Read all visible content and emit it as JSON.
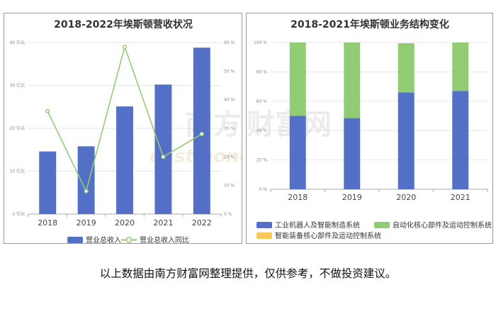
{
  "left_chart_title": "2018-2022年埃斯顿营收状况",
  "right_chart_title": "2018-2021年埃斯顿业务结构变化",
  "footer_text": "以上数据由南方财富网整理提供，仅供参考，不做投资建议。",
  "watermark": {
    "cn": "南方财富网",
    "en": "eastmoney.com"
  },
  "colors": {
    "blue": "#5470c6",
    "green": "#91cc75",
    "yellow": "#fac858"
  },
  "chart_data": [
    {
      "type": "bar",
      "title": "2018-2022年埃斯顿营收状况",
      "categories": [
        "2018",
        "2019",
        "2020",
        "2021",
        "2022"
      ],
      "series": [
        {
          "name": "营业总收入",
          "type": "bar",
          "axis": "left",
          "values": [
            14.6,
            15.8,
            25.1,
            30.2,
            38.8
          ]
        },
        {
          "name": "营业总收入同比",
          "type": "line",
          "axis": "right",
          "values": [
            36.0,
            8.0,
            58.5,
            20.0,
            28.0
          ]
        }
      ],
      "y_left": {
        "ticks": [
          "0 亿元",
          "10 亿元",
          "20 亿元",
          "30 亿元",
          "40 亿元"
        ],
        "ylim": [
          0,
          40
        ]
      },
      "y_right": {
        "ticks": [
          "0 %",
          "10 %",
          "20 %",
          "30 %",
          "40 %",
          "50 %",
          "60 %"
        ],
        "ylim": [
          0,
          60
        ]
      },
      "legend": [
        "营业总收入",
        "营业总收入同比"
      ],
      "legend_position": "bottom",
      "grid": true
    },
    {
      "type": "bar",
      "stacked": true,
      "title": "2018-2021年埃斯顿业务结构变化",
      "categories": [
        "2018",
        "2019",
        "2020",
        "2021"
      ],
      "series": [
        {
          "name": "工业机器人及智能制造系统",
          "values": [
            50,
            48.5,
            66,
            67
          ]
        },
        {
          "name": "自动化核心部件及运动控制系统",
          "values": [
            50,
            51.5,
            33.5,
            33
          ]
        },
        {
          "name": "智能装备核心部件及运动控制系统",
          "values": [
            0,
            0,
            0,
            0
          ]
        }
      ],
      "y": {
        "ticks": [
          "0 %",
          "20 %",
          "40 %",
          "60 %",
          "80 %",
          "100 %"
        ],
        "ylim": [
          0,
          100
        ]
      },
      "legend_position": "bottom",
      "grid": true
    }
  ]
}
